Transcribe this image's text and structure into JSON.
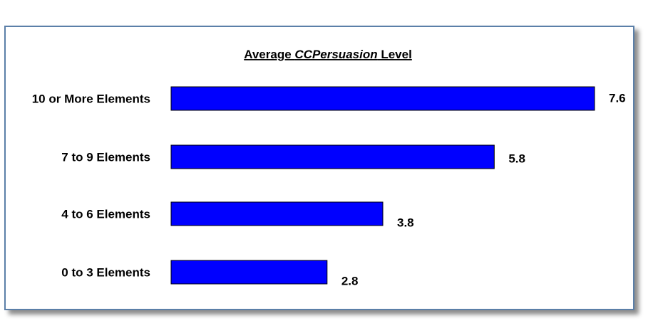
{
  "chart_data": {
    "type": "bar",
    "orientation": "horizontal",
    "title_parts": [
      {
        "text": "Average ",
        "italic": false
      },
      {
        "text": "CCPersuasion",
        "italic": true
      },
      {
        "text": " Level",
        "italic": false
      }
    ],
    "categories": [
      "10 or More Elements",
      "7 to 9 Elements",
      "4 to 6 Elements",
      "0 to 3 Elements"
    ],
    "values": [
      7.6,
      5.8,
      3.8,
      2.8
    ],
    "value_labels": [
      "7.6",
      "5.8",
      "3.8",
      "2.8"
    ],
    "xlim": [
      0,
      7.6
    ],
    "grid": false,
    "legend": "none",
    "bar_color": "#0000ff",
    "bar_edge_color": "#000000",
    "frame_border_color": "#5b7fa8"
  }
}
